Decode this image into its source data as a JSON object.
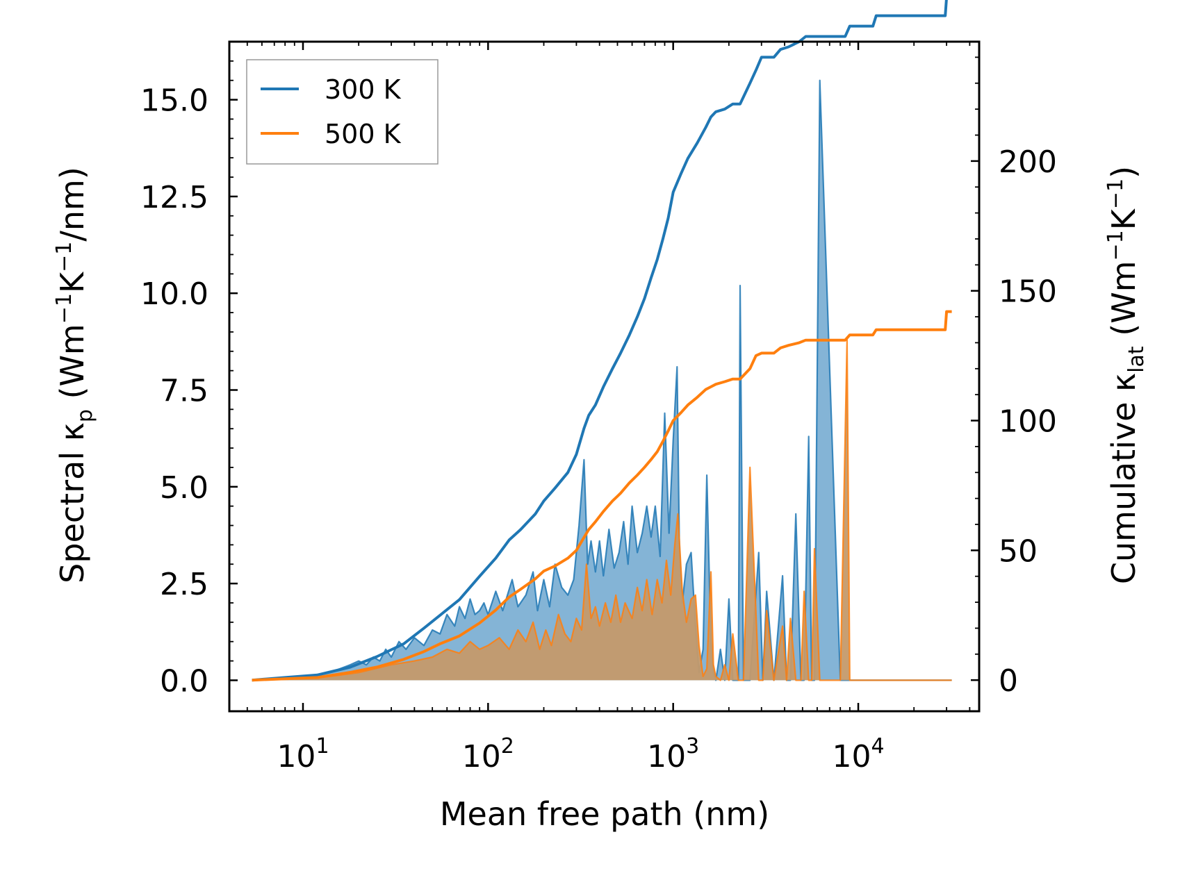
{
  "chart_data": {
    "type": "line",
    "xlabel": "Mean free path (nm)",
    "ylabel_left": {
      "main": "Spectral κ",
      "sub": "p",
      "unit_open": " (Wm",
      "exp1": "−1",
      "mid": "K",
      "exp2": "−1",
      "unit_close": "/nm)"
    },
    "ylabel_right": {
      "main": "Cumulative κ",
      "sub": "lat",
      "unit_open": " (Wm",
      "exp1": "−1",
      "mid": "K",
      "exp2": "−1",
      "unit_close": ")"
    },
    "xscale": "log",
    "xlim": [
      4.0,
      45000
    ],
    "ylim_left": [
      -0.8,
      16.5
    ],
    "ylim_right": [
      -12,
      246
    ],
    "x_tick_labels": [
      {
        "value": 10,
        "base": "10",
        "exp": "1"
      },
      {
        "value": 100,
        "base": "10",
        "exp": "2"
      },
      {
        "value": 1000,
        "base": "10",
        "exp": "3"
      },
      {
        "value": 10000,
        "base": "10",
        "exp": "4"
      }
    ],
    "y_left_ticks": [
      {
        "value": 0,
        "label": "0.0"
      },
      {
        "value": 2.5,
        "label": "2.5"
      },
      {
        "value": 5,
        "label": "5.0"
      },
      {
        "value": 7.5,
        "label": "7.5"
      },
      {
        "value": 10,
        "label": "10.0"
      },
      {
        "value": 12.5,
        "label": "12.5"
      },
      {
        "value": 15,
        "label": "15.0"
      }
    ],
    "y_right_ticks": [
      {
        "value": 0,
        "label": "0"
      },
      {
        "value": 50,
        "label": "50"
      },
      {
        "value": 100,
        "label": "100"
      },
      {
        "value": 150,
        "label": "150"
      },
      {
        "value": 200,
        "label": "200"
      }
    ],
    "legend": {
      "position": "upper-left",
      "entries": [
        {
          "label": "300 K",
          "color": "#1f77b4"
        },
        {
          "label": "500 K",
          "color": "#ff7f0e"
        }
      ]
    },
    "series": [
      {
        "name": "300 K",
        "color": "#1f77b4",
        "spectral": {
          "x": [
            5.3,
            7,
            10,
            14,
            18,
            20,
            22,
            24,
            26,
            28,
            30,
            33,
            36,
            40,
            45,
            50,
            55,
            60,
            66,
            70,
            75,
            80,
            85,
            90,
            95,
            100,
            110,
            120,
            135,
            145,
            160,
            175,
            185,
            200,
            215,
            230,
            250,
            270,
            290,
            310,
            330,
            345,
            360,
            380,
            400,
            420,
            450,
            480,
            510,
            540,
            570,
            600,
            640,
            680,
            720,
            760,
            800,
            850,
            900,
            950,
            1000,
            1050,
            1080,
            1120,
            1180,
            1250,
            1320,
            1380,
            1450,
            1520,
            1600,
            1650,
            1700,
            1800,
            1900,
            2000,
            2100,
            2250,
            2300,
            2400,
            2600,
            2900,
            3050,
            3200,
            3500,
            3900,
            4100,
            4300,
            4600,
            4900,
            5100,
            5400,
            5600,
            5800,
            6200,
            8000,
            8700,
            9000,
            9500,
            11500,
            12200,
            12600,
            13200,
            14000,
            28000,
            29500,
            30500,
            31500,
            32000
          ],
          "y": [
            0,
            0.05,
            0.1,
            0.2,
            0.4,
            0.5,
            0.4,
            0.6,
            0.5,
            0.8,
            0.6,
            1.0,
            0.8,
            1.1,
            0.9,
            1.3,
            1.2,
            1.7,
            1.4,
            1.9,
            1.6,
            2.1,
            1.7,
            1.8,
            2.0,
            1.7,
            2.3,
            1.8,
            2.6,
            1.9,
            2.2,
            2.8,
            1.8,
            2.6,
            1.9,
            3.0,
            2.4,
            2.2,
            2.6,
            4.0,
            5.7,
            3.0,
            3.6,
            2.8,
            3.6,
            2.7,
            3.9,
            2.9,
            3.3,
            4.1,
            3.0,
            4.5,
            3.3,
            3.8,
            4.5,
            3.7,
            4.5,
            3.2,
            6.9,
            3.8,
            6.2,
            8.1,
            3.5,
            2.0,
            3.0,
            3.3,
            1.4,
            0.2,
            0.8,
            5.3,
            1.0,
            0.2,
            0,
            0.8,
            0,
            2.1,
            0,
            0,
            10.2,
            0,
            0,
            3.3,
            0,
            2.3,
            0,
            2.7,
            0,
            0,
            4.3,
            0,
            0,
            6.3,
            0,
            0,
            15.5,
            0,
            0,
            0,
            0,
            0,
            0,
            0,
            0,
            0,
            0,
            0,
            0,
            0,
            0
          ]
        },
        "cumulative": {
          "x": [
            5.3,
            8,
            12,
            18,
            25,
            35,
            45,
            55,
            70,
            90,
            110,
            130,
            150,
            180,
            200,
            230,
            270,
            300,
            330,
            350,
            380,
            420,
            470,
            520,
            580,
            640,
            700,
            760,
            820,
            880,
            940,
            1000,
            1100,
            1200,
            1350,
            1500,
            1600,
            1700,
            1900,
            2100,
            2300,
            2600,
            2800,
            3000,
            3500,
            3800,
            4200,
            4800,
            5200,
            5800,
            8500,
            9000,
            12000,
            12500,
            29500,
            30000,
            31000,
            32000
          ],
          "y": [
            0,
            1,
            2,
            5,
            9,
            14,
            20,
            25,
            31,
            40,
            47,
            54,
            58,
            64,
            69,
            74,
            80,
            87,
            97,
            102,
            106,
            113,
            120,
            126,
            133,
            140,
            147,
            155,
            162,
            170,
            178,
            188,
            195,
            201,
            207,
            213,
            217,
            219,
            220,
            222,
            222,
            230,
            235,
            240,
            240,
            243,
            244,
            246,
            248,
            248,
            248,
            252,
            252,
            256,
            256,
            263,
            263,
            263
          ]
        }
      },
      {
        "name": "500 K",
        "color": "#ff7f0e",
        "spectral": {
          "x": [
            5.3,
            7,
            10,
            14,
            20,
            30,
            40,
            50,
            60,
            70,
            80,
            90,
            100,
            115,
            130,
            145,
            160,
            175,
            190,
            205,
            220,
            240,
            260,
            280,
            300,
            320,
            340,
            360,
            380,
            400,
            430,
            460,
            490,
            520,
            550,
            600,
            640,
            680,
            720,
            770,
            820,
            870,
            920,
            970,
            1020,
            1060,
            1120,
            1180,
            1250,
            1320,
            1380,
            1450,
            1520,
            1600,
            1650,
            1700,
            1800,
            1900,
            2000,
            2100,
            2250,
            2400,
            2600,
            2900,
            3050,
            3200,
            3500,
            3900,
            4100,
            4300,
            4600,
            4900,
            5100,
            5400,
            5600,
            5800,
            6200,
            8000,
            8700,
            9000,
            9500,
            11500,
            12200,
            12600,
            13200,
            14000,
            28000,
            29500,
            30500,
            31500,
            32000
          ],
          "y": [
            0,
            0.03,
            0.06,
            0.1,
            0.2,
            0.4,
            0.5,
            0.6,
            0.8,
            0.7,
            1.0,
            0.8,
            0.9,
            1.1,
            0.8,
            1.3,
            1.0,
            1.5,
            0.8,
            1.3,
            0.9,
            1.7,
            1.2,
            1.0,
            1.6,
            1.3,
            3.0,
            1.6,
            1.9,
            1.4,
            2.0,
            1.5,
            2.2,
            1.5,
            2.0,
            1.6,
            2.4,
            1.8,
            2.6,
            1.7,
            2.6,
            2.0,
            3.1,
            2.2,
            3.5,
            4.3,
            2.3,
            1.5,
            2.1,
            2.2,
            0.9,
            0.1,
            0.3,
            2.8,
            0.4,
            0.1,
            0,
            0.4,
            0,
            1.2,
            0,
            0,
            5.5,
            0,
            0,
            1.8,
            0,
            1.4,
            0,
            1.6,
            0,
            0,
            2.3,
            0,
            0,
            3.4,
            0,
            0,
            8.8,
            0,
            0,
            0,
            0,
            0,
            0,
            0,
            0,
            0,
            0,
            0,
            0
          ]
        },
        "cumulative": {
          "x": [
            5.3,
            8,
            12,
            18,
            25,
            35,
            45,
            55,
            70,
            90,
            110,
            130,
            150,
            180,
            200,
            230,
            270,
            300,
            330,
            350,
            380,
            420,
            470,
            520,
            580,
            640,
            700,
            760,
            820,
            880,
            940,
            1000,
            1100,
            1200,
            1350,
            1500,
            1600,
            1700,
            1900,
            2100,
            2300,
            2600,
            2800,
            3000,
            3500,
            3800,
            4200,
            4800,
            5200,
            5800,
            8500,
            9000,
            12000,
            12500,
            29500,
            30000,
            31000,
            32000
          ],
          "y": [
            0,
            0.5,
            1,
            3,
            5,
            8,
            11,
            14,
            17,
            22,
            27,
            32,
            35,
            39,
            42,
            44,
            47,
            50,
            55,
            58,
            61,
            65,
            69,
            72,
            76,
            79,
            82,
            85,
            88,
            92,
            96,
            100,
            103,
            106,
            109,
            112,
            113,
            114,
            115,
            116,
            116,
            120,
            125,
            126,
            126,
            128,
            129,
            130,
            131,
            131,
            131,
            133,
            133,
            135,
            135,
            142,
            142,
            142
          ]
        }
      }
    ]
  }
}
